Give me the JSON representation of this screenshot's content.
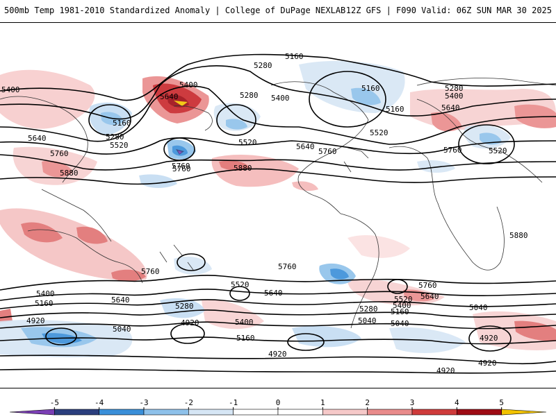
{
  "header": {
    "left": "500mb Temp 1981-2010 Standardized Anomaly | College of DuPage NEXLAB",
    "right": "12Z GFS | F090 Valid: 06Z SUN MAR 30 2025"
  },
  "contour_labels": [
    {
      "text": "5160"
    },
    {
      "text": "5280"
    },
    {
      "text": "5400"
    },
    {
      "text": "5640"
    },
    {
      "text": "5280"
    },
    {
      "text": "5400"
    },
    {
      "text": "5160"
    },
    {
      "text": "5160"
    },
    {
      "text": "5280"
    },
    {
      "text": "5400"
    },
    {
      "text": "5400"
    },
    {
      "text": "5160"
    },
    {
      "text": "5280"
    },
    {
      "text": "5520"
    },
    {
      "text": "5640"
    },
    {
      "text": "5760"
    },
    {
      "text": "5640"
    },
    {
      "text": "5520"
    },
    {
      "text": "5760"
    },
    {
      "text": "5880"
    },
    {
      "text": "5760"
    },
    {
      "text": "5880"
    },
    {
      "text": "5760"
    },
    {
      "text": "5520"
    },
    {
      "text": "5640"
    },
    {
      "text": "5520"
    },
    {
      "text": "5880"
    },
    {
      "text": "5760"
    },
    {
      "text": "5760"
    },
    {
      "text": "5760"
    },
    {
      "text": "5400"
    },
    {
      "text": "5160"
    },
    {
      "text": "5640"
    },
    {
      "text": "5280"
    },
    {
      "text": "4920"
    },
    {
      "text": "5040"
    },
    {
      "text": "4920"
    },
    {
      "text": "5520"
    },
    {
      "text": "5640"
    },
    {
      "text": "5400"
    },
    {
      "text": "5160"
    },
    {
      "text": "5040"
    },
    {
      "text": "5040"
    },
    {
      "text": "5280"
    },
    {
      "text": "5160"
    },
    {
      "text": "5400"
    },
    {
      "text": "5520"
    },
    {
      "text": "5640"
    },
    {
      "text": "5040"
    },
    {
      "text": "4920"
    },
    {
      "text": "4920"
    },
    {
      "text": "4920"
    },
    {
      "text": "4920"
    },
    {
      "text": "5760"
    }
  ],
  "colorbar": {
    "ticks": [
      "-5",
      "-4",
      "-3",
      "-2",
      "-1",
      "0",
      "1",
      "2",
      "3",
      "4",
      "5"
    ],
    "colors": [
      "#7b3fb5",
      "#2b3f7e",
      "#3a8fd9",
      "#8ec1ea",
      "#d6e6f5",
      "#ffffff",
      "#ffffff",
      "#f6c9c9",
      "#e98b8b",
      "#cf3b3b",
      "#9e0b14",
      "#f2c300"
    ]
  },
  "colors": {
    "anomaly_warm": "#f4b7b7",
    "anomaly_warm_strong": "#c8262b",
    "anomaly_cold": "#a8cbed",
    "anomaly_cold_strong": "#3a8fd9",
    "coastline": "#333333"
  }
}
